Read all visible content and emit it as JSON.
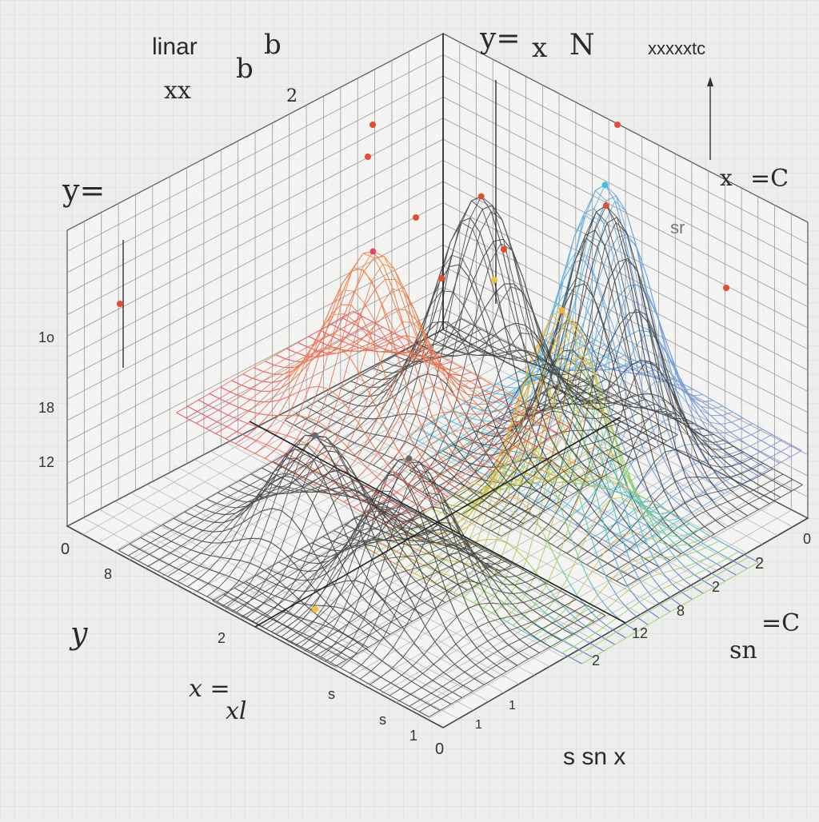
{
  "chart_data": {
    "type": "surface",
    "title": "",
    "annotations": [
      "linar",
      "b",
      "xx",
      "b",
      "2",
      "y=",
      "y=",
      "x",
      "N",
      "xxxxxtc",
      "x",
      "=C",
      "sr",
      "sn",
      "=C",
      "s sn x",
      "y",
      "x =",
      "xl"
    ],
    "left_axis_ticks": [
      "1o",
      "18",
      "12"
    ],
    "front_left_ticks": [
      "0",
      "8",
      "2",
      "s",
      "s",
      "1"
    ],
    "front_right_ticks": [
      "0",
      "2",
      "2",
      "8",
      "12",
      "2",
      "1",
      "1"
    ],
    "corner_tick": "0",
    "peaks": [
      {
        "name": "",
        "x": 2.0,
        "y": 8.0,
        "height": 0.62,
        "color": "#e8456e"
      },
      {
        "name": "",
        "x": 4.0,
        "y": 9.5,
        "height": 0.85,
        "color": "#7a7a7a"
      },
      {
        "name": "",
        "x": 6.5,
        "y": 11.0,
        "height": 0.95,
        "color": "#3bc4e0"
      },
      {
        "name": "",
        "x": 7.5,
        "y": 10.0,
        "height": 1.0,
        "color": "#7a7a7a"
      },
      {
        "name": "",
        "x": 9.0,
        "y": 7.0,
        "height": 0.9,
        "color": "#f2b233"
      },
      {
        "name": "",
        "x": 5.0,
        "y": 3.0,
        "height": 0.45,
        "color": "#6a6a6a"
      },
      {
        "name": "",
        "x": 8.0,
        "y": 3.0,
        "height": 0.55,
        "color": "#6a6a6a"
      }
    ],
    "grid": true,
    "colors": [
      "#e8456e",
      "#f2b233",
      "#8fd35a",
      "#3bc4e0",
      "#6d63d6",
      "#7a7a7a"
    ]
  }
}
